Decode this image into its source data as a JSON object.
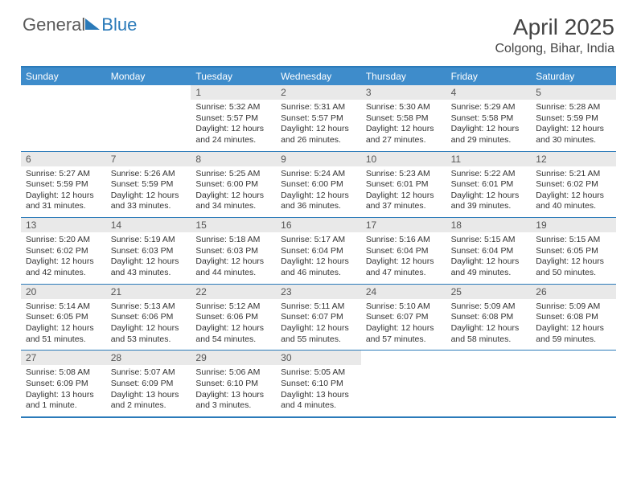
{
  "logo": {
    "text_a": "General",
    "text_b": "Blue"
  },
  "title": "April 2025",
  "location": "Colgong, Bihar, India",
  "colors": {
    "header_bg": "#3e8ccb",
    "border": "#2a7ab9",
    "daynum_bg": "#e9e9e9",
    "text": "#333333",
    "logo_gray": "#5a5a5a"
  },
  "day_headers": [
    "Sunday",
    "Monday",
    "Tuesday",
    "Wednesday",
    "Thursday",
    "Friday",
    "Saturday"
  ],
  "weeks": [
    [
      {
        "n": "",
        "sr": "",
        "ss": "",
        "dl": ""
      },
      {
        "n": "",
        "sr": "",
        "ss": "",
        "dl": ""
      },
      {
        "n": "1",
        "sr": "Sunrise: 5:32 AM",
        "ss": "Sunset: 5:57 PM",
        "dl": "Daylight: 12 hours and 24 minutes."
      },
      {
        "n": "2",
        "sr": "Sunrise: 5:31 AM",
        "ss": "Sunset: 5:57 PM",
        "dl": "Daylight: 12 hours and 26 minutes."
      },
      {
        "n": "3",
        "sr": "Sunrise: 5:30 AM",
        "ss": "Sunset: 5:58 PM",
        "dl": "Daylight: 12 hours and 27 minutes."
      },
      {
        "n": "4",
        "sr": "Sunrise: 5:29 AM",
        "ss": "Sunset: 5:58 PM",
        "dl": "Daylight: 12 hours and 29 minutes."
      },
      {
        "n": "5",
        "sr": "Sunrise: 5:28 AM",
        "ss": "Sunset: 5:59 PM",
        "dl": "Daylight: 12 hours and 30 minutes."
      }
    ],
    [
      {
        "n": "6",
        "sr": "Sunrise: 5:27 AM",
        "ss": "Sunset: 5:59 PM",
        "dl": "Daylight: 12 hours and 31 minutes."
      },
      {
        "n": "7",
        "sr": "Sunrise: 5:26 AM",
        "ss": "Sunset: 5:59 PM",
        "dl": "Daylight: 12 hours and 33 minutes."
      },
      {
        "n": "8",
        "sr": "Sunrise: 5:25 AM",
        "ss": "Sunset: 6:00 PM",
        "dl": "Daylight: 12 hours and 34 minutes."
      },
      {
        "n": "9",
        "sr": "Sunrise: 5:24 AM",
        "ss": "Sunset: 6:00 PM",
        "dl": "Daylight: 12 hours and 36 minutes."
      },
      {
        "n": "10",
        "sr": "Sunrise: 5:23 AM",
        "ss": "Sunset: 6:01 PM",
        "dl": "Daylight: 12 hours and 37 minutes."
      },
      {
        "n": "11",
        "sr": "Sunrise: 5:22 AM",
        "ss": "Sunset: 6:01 PM",
        "dl": "Daylight: 12 hours and 39 minutes."
      },
      {
        "n": "12",
        "sr": "Sunrise: 5:21 AM",
        "ss": "Sunset: 6:02 PM",
        "dl": "Daylight: 12 hours and 40 minutes."
      }
    ],
    [
      {
        "n": "13",
        "sr": "Sunrise: 5:20 AM",
        "ss": "Sunset: 6:02 PM",
        "dl": "Daylight: 12 hours and 42 minutes."
      },
      {
        "n": "14",
        "sr": "Sunrise: 5:19 AM",
        "ss": "Sunset: 6:03 PM",
        "dl": "Daylight: 12 hours and 43 minutes."
      },
      {
        "n": "15",
        "sr": "Sunrise: 5:18 AM",
        "ss": "Sunset: 6:03 PM",
        "dl": "Daylight: 12 hours and 44 minutes."
      },
      {
        "n": "16",
        "sr": "Sunrise: 5:17 AM",
        "ss": "Sunset: 6:04 PM",
        "dl": "Daylight: 12 hours and 46 minutes."
      },
      {
        "n": "17",
        "sr": "Sunrise: 5:16 AM",
        "ss": "Sunset: 6:04 PM",
        "dl": "Daylight: 12 hours and 47 minutes."
      },
      {
        "n": "18",
        "sr": "Sunrise: 5:15 AM",
        "ss": "Sunset: 6:04 PM",
        "dl": "Daylight: 12 hours and 49 minutes."
      },
      {
        "n": "19",
        "sr": "Sunrise: 5:15 AM",
        "ss": "Sunset: 6:05 PM",
        "dl": "Daylight: 12 hours and 50 minutes."
      }
    ],
    [
      {
        "n": "20",
        "sr": "Sunrise: 5:14 AM",
        "ss": "Sunset: 6:05 PM",
        "dl": "Daylight: 12 hours and 51 minutes."
      },
      {
        "n": "21",
        "sr": "Sunrise: 5:13 AM",
        "ss": "Sunset: 6:06 PM",
        "dl": "Daylight: 12 hours and 53 minutes."
      },
      {
        "n": "22",
        "sr": "Sunrise: 5:12 AM",
        "ss": "Sunset: 6:06 PM",
        "dl": "Daylight: 12 hours and 54 minutes."
      },
      {
        "n": "23",
        "sr": "Sunrise: 5:11 AM",
        "ss": "Sunset: 6:07 PM",
        "dl": "Daylight: 12 hours and 55 minutes."
      },
      {
        "n": "24",
        "sr": "Sunrise: 5:10 AM",
        "ss": "Sunset: 6:07 PM",
        "dl": "Daylight: 12 hours and 57 minutes."
      },
      {
        "n": "25",
        "sr": "Sunrise: 5:09 AM",
        "ss": "Sunset: 6:08 PM",
        "dl": "Daylight: 12 hours and 58 minutes."
      },
      {
        "n": "26",
        "sr": "Sunrise: 5:09 AM",
        "ss": "Sunset: 6:08 PM",
        "dl": "Daylight: 12 hours and 59 minutes."
      }
    ],
    [
      {
        "n": "27",
        "sr": "Sunrise: 5:08 AM",
        "ss": "Sunset: 6:09 PM",
        "dl": "Daylight: 13 hours and 1 minute."
      },
      {
        "n": "28",
        "sr": "Sunrise: 5:07 AM",
        "ss": "Sunset: 6:09 PM",
        "dl": "Daylight: 13 hours and 2 minutes."
      },
      {
        "n": "29",
        "sr": "Sunrise: 5:06 AM",
        "ss": "Sunset: 6:10 PM",
        "dl": "Daylight: 13 hours and 3 minutes."
      },
      {
        "n": "30",
        "sr": "Sunrise: 5:05 AM",
        "ss": "Sunset: 6:10 PM",
        "dl": "Daylight: 13 hours and 4 minutes."
      },
      {
        "n": "",
        "sr": "",
        "ss": "",
        "dl": ""
      },
      {
        "n": "",
        "sr": "",
        "ss": "",
        "dl": ""
      },
      {
        "n": "",
        "sr": "",
        "ss": "",
        "dl": ""
      }
    ]
  ]
}
